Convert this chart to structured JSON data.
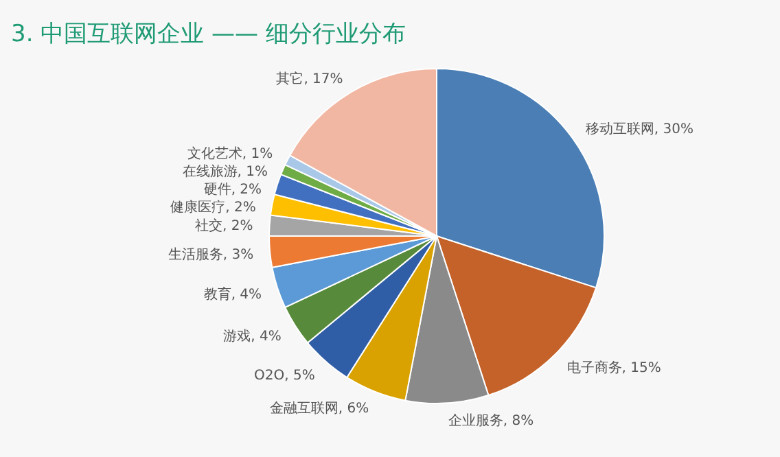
{
  "chart_data": {
    "type": "pie",
    "title": "3. 中国互联网企业 —— 细分行业分布",
    "categories": [
      "移动互联网",
      "电子商务",
      "企业服务",
      "金融互联网",
      "O2O",
      "游戏",
      "教育",
      "生活服务",
      "社交",
      "健康医疗",
      "硬件",
      "在线旅游",
      "文化艺术",
      "其它"
    ],
    "values": [
      30,
      15,
      8,
      6,
      5,
      4,
      4,
      3,
      2,
      2,
      2,
      1,
      1,
      17
    ],
    "value_labels": [
      "30%",
      "15%",
      "8%",
      "6%",
      "5%",
      "4%",
      "4%",
      "3%",
      "2%",
      "2%",
      "2%",
      "1%",
      "1%",
      "17%"
    ],
    "colors": [
      "#4a7eb4",
      "#c4622a",
      "#8a8a8a",
      "#d9a200",
      "#305ea6",
      "#578a3a",
      "#5b9ad6",
      "#ec7a33",
      "#a5a5a5",
      "#fdbf00",
      "#4170c0",
      "#6fac46",
      "#a9c8e8",
      "#f2b7a2"
    ],
    "legend": false
  }
}
